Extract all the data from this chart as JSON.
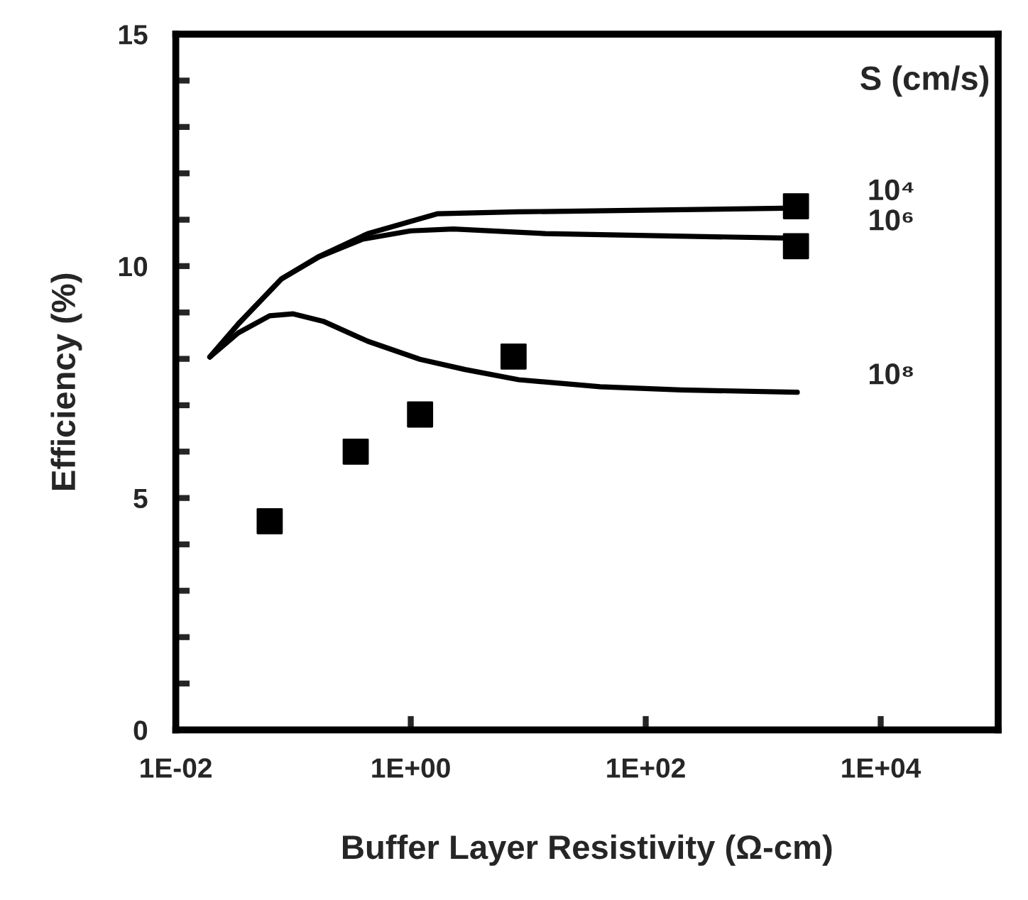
{
  "chart_data": {
    "type": "line",
    "xlabel": "Buffer Layer Resistivity (Ω-cm)",
    "ylabel": "Efficiency (%)",
    "legend_title": "S (cm/s)",
    "log": "x",
    "xlim": [
      0.01,
      100000
    ],
    "ylim": [
      0,
      15
    ],
    "xticks": [
      {
        "value": 0.01,
        "label": "1E-02"
      },
      {
        "value": 1,
        "label": "1E+00"
      },
      {
        "value": 100,
        "label": "1E+02"
      },
      {
        "value": 10000,
        "label": "1E+04"
      }
    ],
    "yticks": [
      0,
      {
        "value": 1,
        "label": null
      },
      {
        "value": 2,
        "label": null
      },
      {
        "value": 3,
        "label": null
      },
      {
        "value": 4,
        "label": null
      },
      5,
      {
        "value": 6,
        "label": null
      },
      {
        "value": 7,
        "label": null
      },
      {
        "value": 8,
        "label": null
      },
      {
        "value": 9,
        "label": null
      },
      10,
      {
        "value": 11,
        "label": null
      },
      {
        "value": 12,
        "label": null
      },
      {
        "value": 13,
        "label": null
      },
      {
        "value": 14,
        "label": null
      },
      15
    ],
    "grid": false,
    "legend": false,
    "line_style": "solid",
    "series": [
      {
        "name": "10⁴",
        "color": "#000000",
        "marker": "none",
        "x": [
          0.0195,
          0.034,
          0.079,
          0.166,
          0.43,
          1.7,
          8.3,
          1900
        ],
        "values": [
          8.04,
          8.75,
          9.72,
          10.21,
          10.7,
          11.13,
          11.17,
          11.25
        ]
      },
      {
        "name": "10⁶",
        "color": "#000000",
        "marker": "none",
        "x": [
          0.0195,
          0.034,
          0.079,
          0.166,
          0.39,
          1.0,
          2.3,
          14,
          1900
        ],
        "values": [
          8.04,
          8.75,
          9.72,
          10.2,
          10.58,
          10.76,
          10.8,
          10.7,
          10.6
        ]
      },
      {
        "name": "10⁸",
        "color": "#000000",
        "marker": "none",
        "x": [
          0.0195,
          0.034,
          0.063,
          0.1,
          0.18,
          0.43,
          1.2,
          2.9,
          8.3,
          41,
          200,
          1950
        ],
        "values": [
          8.04,
          8.56,
          8.93,
          8.97,
          8.81,
          8.38,
          7.99,
          7.77,
          7.55,
          7.4,
          7.33,
          7.28
        ]
      },
      {
        "type": "scatter",
        "color": "#000000",
        "marker": "square",
        "x": [
          0.063,
          0.34,
          1.2,
          7.5,
          1900,
          1900
        ],
        "values": [
          4.5,
          6.0,
          6.8,
          8.05,
          11.29,
          10.43
        ]
      }
    ]
  }
}
